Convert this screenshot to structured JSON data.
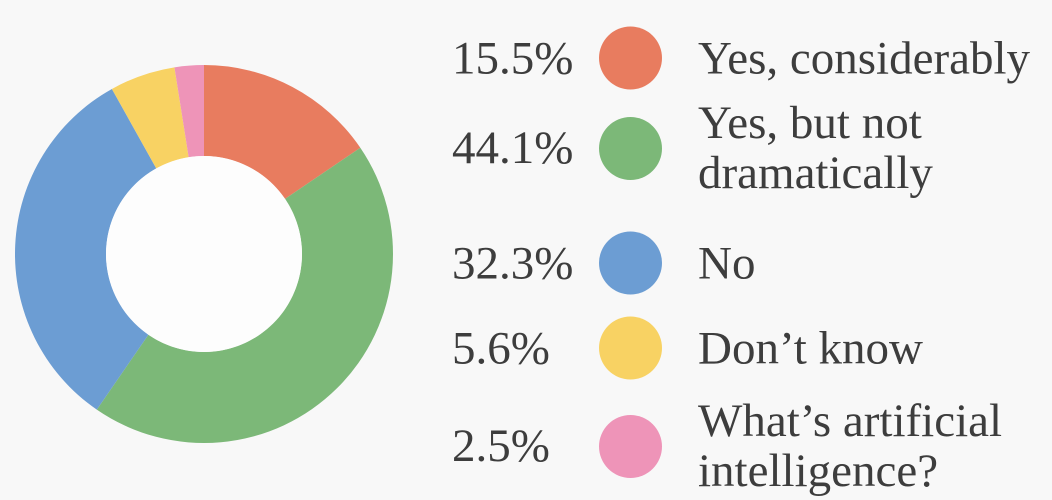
{
  "chart_data": {
    "type": "pie",
    "variant": "donut",
    "title": "",
    "values": [
      15.5,
      44.1,
      32.3,
      5.6,
      2.5
    ],
    "percent_labels": [
      "15.5%",
      "44.1%",
      "32.3%",
      "5.6%",
      "2.5%"
    ],
    "labels": [
      "Yes, considerably",
      "Yes, but not\ndramatically",
      "No",
      "Don’t know",
      "What’s artificial\nintelligence?"
    ],
    "colors": [
      "#e87c5f",
      "#7cb878",
      "#6c9dd3",
      "#f8d263",
      "#ee94b8"
    ],
    "start_angle_deg": 0,
    "direction": "clockwise",
    "donut_hole_ratio": 0.52,
    "hole_color": "#fdfdfd",
    "background_color": "#f8f8f8",
    "text_color": "#3d3d3d",
    "legend_position": "right",
    "grid": false
  }
}
